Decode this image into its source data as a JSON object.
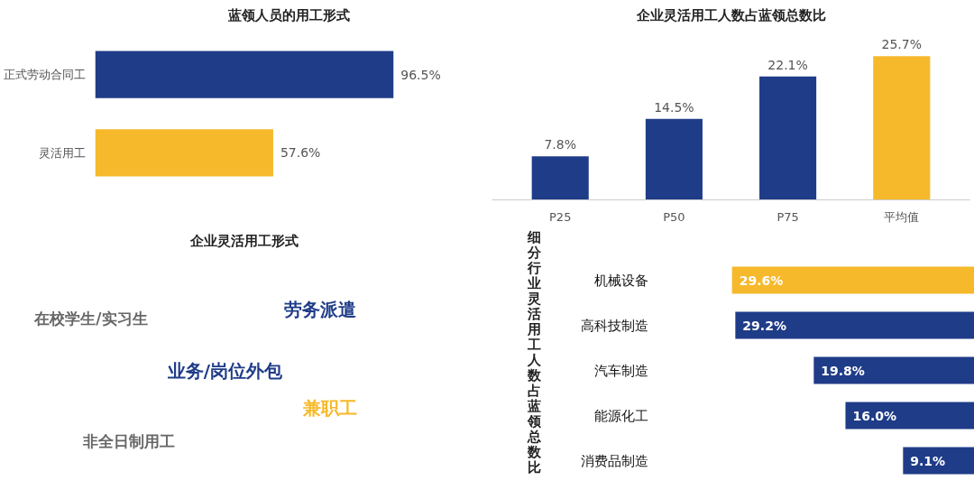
{
  "chart_data": [
    {
      "type": "bar",
      "orientation": "horizontal",
      "title": "蓝领人员的用工形式",
      "categories": [
        "正式劳动合同工",
        "灵活用工"
      ],
      "values": [
        96.5,
        57.6
      ],
      "colors": [
        "#1f3c88",
        "#f6b92b"
      ],
      "value_labels": [
        "96.5%",
        "57.6%"
      ]
    },
    {
      "type": "bar",
      "title": "企业灵活用工人数占蓝领总数比",
      "categories": [
        "P25",
        "P50",
        "P75",
        "平均值"
      ],
      "values": [
        7.8,
        14.5,
        22.1,
        25.7
      ],
      "colors": [
        "#1f3c88",
        "#1f3c88",
        "#1f3c88",
        "#f6b92b"
      ],
      "value_labels": [
        "7.8%",
        "14.5%",
        "22.1%",
        "25.7%"
      ]
    },
    {
      "type": "other",
      "title": "企业灵活用工形式",
      "annotations": [
        "在校学生/实习生",
        "劳务派遣",
        "业务/岗位外包",
        "兼职工",
        "非全日制用工"
      ]
    },
    {
      "type": "bar",
      "orientation": "horizontal",
      "title": "细分行业灵活用工人数占蓝领总数比",
      "categories": [
        "机械设备",
        "高科技制造",
        "汽车制造",
        "能源化工",
        "消费品制造"
      ],
      "values": [
        29.6,
        29.2,
        19.8,
        16.0,
        9.1
      ],
      "colors": [
        "#f6b92b",
        "#1f3c88",
        "#1f3c88",
        "#1f3c88",
        "#1f3c88"
      ],
      "value_labels": [
        "29.6%",
        "29.2%",
        "19.8%",
        "16.0%",
        "9.1%"
      ]
    }
  ]
}
